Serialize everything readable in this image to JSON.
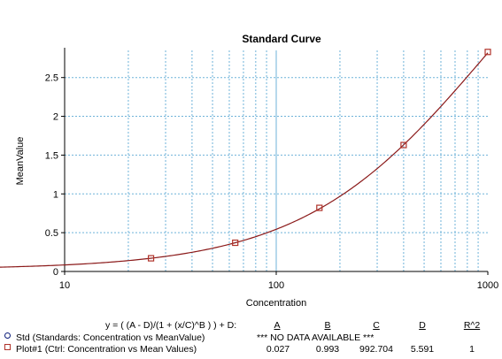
{
  "chart_data": {
    "type": "scatter",
    "title": "Standard Curve",
    "xlabel": "Concentration",
    "ylabel": "MeanValue",
    "x_scale": "log",
    "xlim": [
      10,
      1000
    ],
    "ylim": [
      0,
      2.85
    ],
    "x_ticks": [
      10,
      100,
      1000
    ],
    "x_tick_labels": [
      "10",
      "100",
      "1000"
    ],
    "y_ticks": [
      0,
      0.5,
      1,
      1.5,
      2,
      2.5
    ],
    "y_tick_labels": [
      "0",
      "0.5",
      "1",
      "1.5",
      "2",
      "2.5"
    ],
    "grid": true,
    "series": [
      {
        "name": "Plot#1 (Ctrl: Concentration vs Mean Values)",
        "marker": "square",
        "x": [
          25.6,
          64,
          160,
          400,
          1000
        ],
        "y": [
          0.17,
          0.37,
          0.82,
          1.63,
          2.83
        ]
      }
    ],
    "fit": {
      "equation": "y = ( (A - D)/(1 + (x/C)^B ) ) + D:",
      "A": 0.027,
      "B": 0.993,
      "C": 992.704,
      "D": 5.591
    },
    "colors": {
      "grid": "#6fb3d9",
      "curve": "#8b1a1a",
      "marker": "#b0332a",
      "std_marker": "#0b1c7a",
      "axis": "#000000"
    }
  },
  "table": {
    "equation": "y = ( (A - D)/(1 + (x/C)^B ) ) + D:",
    "headers": [
      "A",
      "B",
      "C",
      "D",
      "R^2"
    ],
    "std_row": {
      "label": "Std (Standards: Concentration vs MeanValue)",
      "message": "*** NO DATA AVAILABLE ***"
    },
    "plot_row": {
      "label": "Plot#1 (Ctrl: Concentration vs Mean Values)",
      "values": [
        "0.027",
        "0.993",
        "992.704",
        "5.591",
        "1"
      ]
    }
  }
}
